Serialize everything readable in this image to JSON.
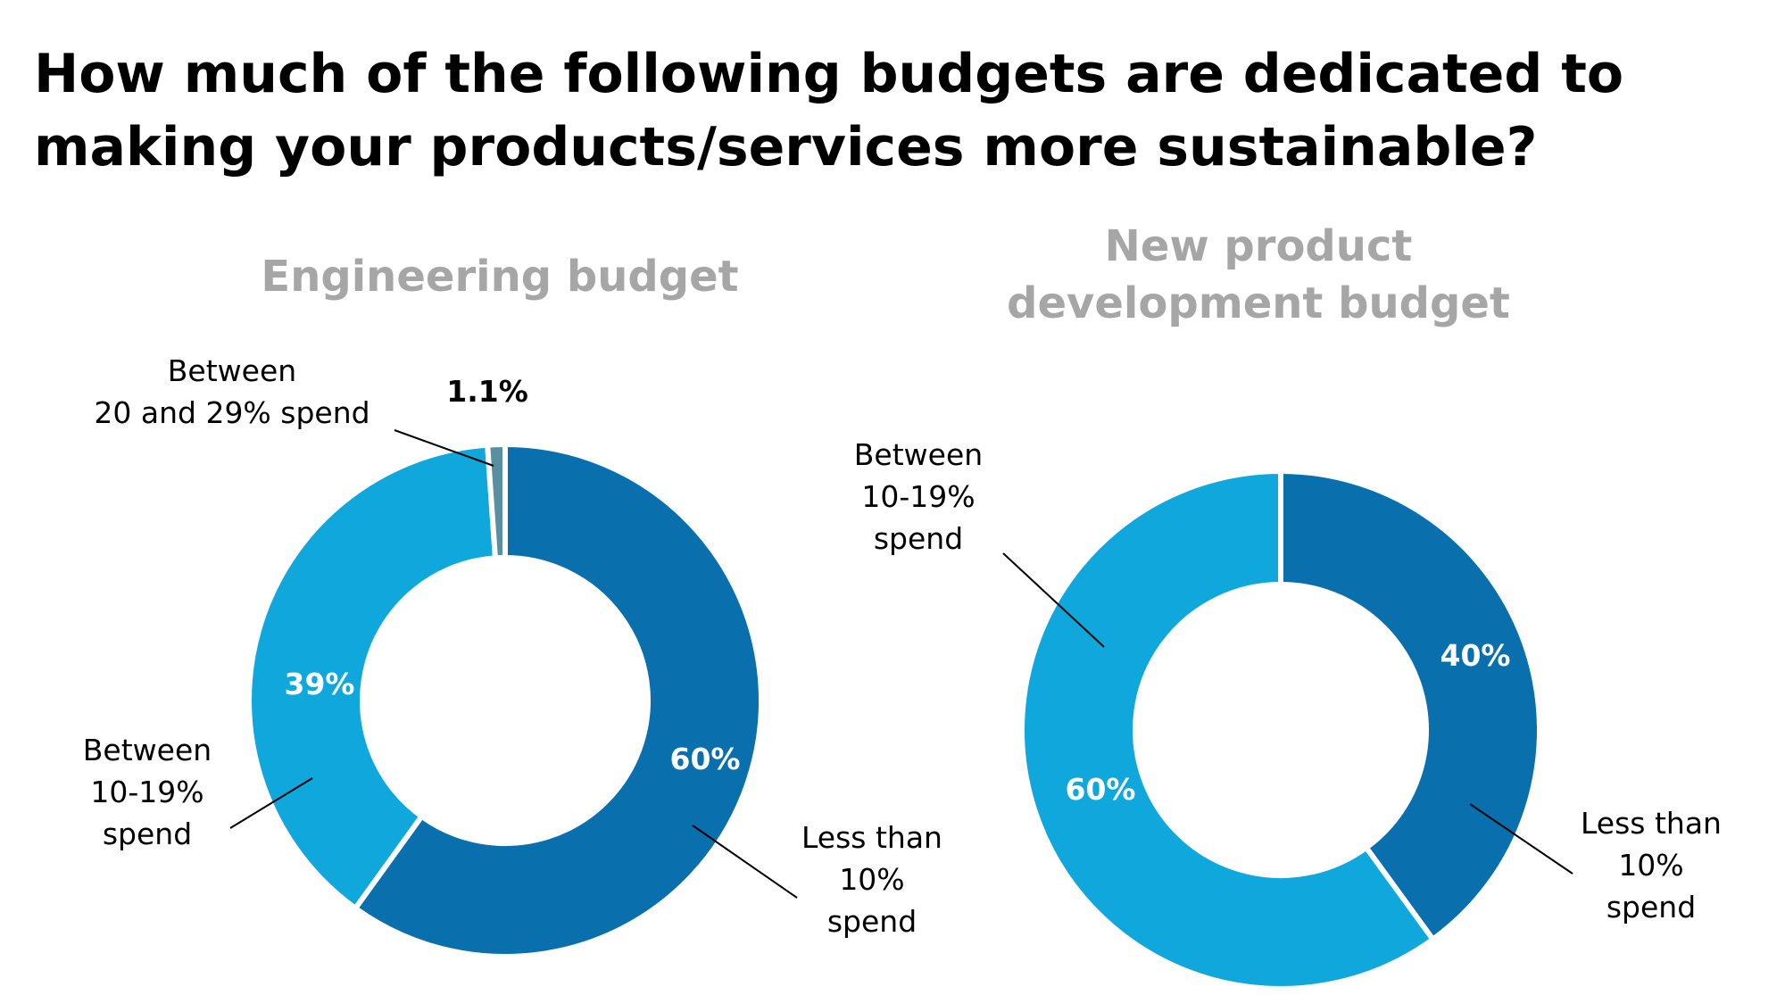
{
  "title": "How much of the following budgets are dedicated to making your products/services more sustainable?",
  "chart_data": [
    {
      "type": "pie",
      "title": "Engineering budget",
      "slices": [
        {
          "category": "Less than 10% spend",
          "label_lines": [
            "Less than",
            "10%",
            "spend"
          ],
          "value": 60,
          "value_label": "60%",
          "color": "#0a6fad"
        },
        {
          "category": "Between 10-19% spend",
          "label_lines": [
            "Between",
            "10-19%",
            "spend"
          ],
          "value": 39,
          "value_label": "39%",
          "color": "#10a8dc"
        },
        {
          "category": "Between 20 and 29% spend",
          "label_lines": [
            "Between",
            "20 and 29% spend"
          ],
          "value": 1.1,
          "value_label": "1.1%",
          "color": "#5a8fa0"
        }
      ]
    },
    {
      "type": "pie",
      "title": "New product development budget",
      "title_lines": [
        "New product",
        "development budget"
      ],
      "slices": [
        {
          "category": "Less than 10% spend",
          "label_lines": [
            "Less than",
            "10%",
            "spend"
          ],
          "value": 40,
          "value_label": "40%",
          "color": "#0a6fad"
        },
        {
          "category": "Between 10-19% spend",
          "label_lines": [
            "Between",
            "10-19%",
            "spend"
          ],
          "value": 60,
          "value_label": "60%",
          "color": "#10a8dc"
        }
      ]
    }
  ]
}
